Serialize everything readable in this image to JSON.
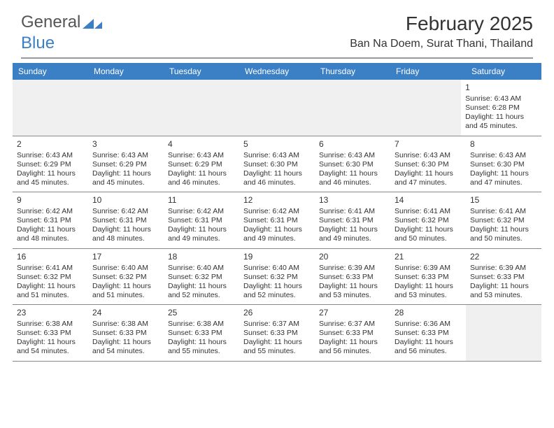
{
  "brand": {
    "word1": "General",
    "word2": "Blue"
  },
  "title": "February 2025",
  "location": "Ban Na Doem, Surat Thani, Thailand",
  "colors": {
    "header_bar": "#3b7fc4",
    "text": "#333333",
    "divider": "#888888",
    "blank_bg": "#f0f0f0",
    "logo_gray": "#555555"
  },
  "day_names": [
    "Sunday",
    "Monday",
    "Tuesday",
    "Wednesday",
    "Thursday",
    "Friday",
    "Saturday"
  ],
  "weeks": [
    [
      null,
      null,
      null,
      null,
      null,
      null,
      {
        "n": "1",
        "sr": "Sunrise: 6:43 AM",
        "ss": "Sunset: 6:28 PM",
        "dl1": "Daylight: 11 hours",
        "dl2": "and 45 minutes."
      }
    ],
    [
      {
        "n": "2",
        "sr": "Sunrise: 6:43 AM",
        "ss": "Sunset: 6:29 PM",
        "dl1": "Daylight: 11 hours",
        "dl2": "and 45 minutes."
      },
      {
        "n": "3",
        "sr": "Sunrise: 6:43 AM",
        "ss": "Sunset: 6:29 PM",
        "dl1": "Daylight: 11 hours",
        "dl2": "and 45 minutes."
      },
      {
        "n": "4",
        "sr": "Sunrise: 6:43 AM",
        "ss": "Sunset: 6:29 PM",
        "dl1": "Daylight: 11 hours",
        "dl2": "and 46 minutes."
      },
      {
        "n": "5",
        "sr": "Sunrise: 6:43 AM",
        "ss": "Sunset: 6:30 PM",
        "dl1": "Daylight: 11 hours",
        "dl2": "and 46 minutes."
      },
      {
        "n": "6",
        "sr": "Sunrise: 6:43 AM",
        "ss": "Sunset: 6:30 PM",
        "dl1": "Daylight: 11 hours",
        "dl2": "and 46 minutes."
      },
      {
        "n": "7",
        "sr": "Sunrise: 6:43 AM",
        "ss": "Sunset: 6:30 PM",
        "dl1": "Daylight: 11 hours",
        "dl2": "and 47 minutes."
      },
      {
        "n": "8",
        "sr": "Sunrise: 6:43 AM",
        "ss": "Sunset: 6:30 PM",
        "dl1": "Daylight: 11 hours",
        "dl2": "and 47 minutes."
      }
    ],
    [
      {
        "n": "9",
        "sr": "Sunrise: 6:42 AM",
        "ss": "Sunset: 6:31 PM",
        "dl1": "Daylight: 11 hours",
        "dl2": "and 48 minutes."
      },
      {
        "n": "10",
        "sr": "Sunrise: 6:42 AM",
        "ss": "Sunset: 6:31 PM",
        "dl1": "Daylight: 11 hours",
        "dl2": "and 48 minutes."
      },
      {
        "n": "11",
        "sr": "Sunrise: 6:42 AM",
        "ss": "Sunset: 6:31 PM",
        "dl1": "Daylight: 11 hours",
        "dl2": "and 49 minutes."
      },
      {
        "n": "12",
        "sr": "Sunrise: 6:42 AM",
        "ss": "Sunset: 6:31 PM",
        "dl1": "Daylight: 11 hours",
        "dl2": "and 49 minutes."
      },
      {
        "n": "13",
        "sr": "Sunrise: 6:41 AM",
        "ss": "Sunset: 6:31 PM",
        "dl1": "Daylight: 11 hours",
        "dl2": "and 49 minutes."
      },
      {
        "n": "14",
        "sr": "Sunrise: 6:41 AM",
        "ss": "Sunset: 6:32 PM",
        "dl1": "Daylight: 11 hours",
        "dl2": "and 50 minutes."
      },
      {
        "n": "15",
        "sr": "Sunrise: 6:41 AM",
        "ss": "Sunset: 6:32 PM",
        "dl1": "Daylight: 11 hours",
        "dl2": "and 50 minutes."
      }
    ],
    [
      {
        "n": "16",
        "sr": "Sunrise: 6:41 AM",
        "ss": "Sunset: 6:32 PM",
        "dl1": "Daylight: 11 hours",
        "dl2": "and 51 minutes."
      },
      {
        "n": "17",
        "sr": "Sunrise: 6:40 AM",
        "ss": "Sunset: 6:32 PM",
        "dl1": "Daylight: 11 hours",
        "dl2": "and 51 minutes."
      },
      {
        "n": "18",
        "sr": "Sunrise: 6:40 AM",
        "ss": "Sunset: 6:32 PM",
        "dl1": "Daylight: 11 hours",
        "dl2": "and 52 minutes."
      },
      {
        "n": "19",
        "sr": "Sunrise: 6:40 AM",
        "ss": "Sunset: 6:32 PM",
        "dl1": "Daylight: 11 hours",
        "dl2": "and 52 minutes."
      },
      {
        "n": "20",
        "sr": "Sunrise: 6:39 AM",
        "ss": "Sunset: 6:33 PM",
        "dl1": "Daylight: 11 hours",
        "dl2": "and 53 minutes."
      },
      {
        "n": "21",
        "sr": "Sunrise: 6:39 AM",
        "ss": "Sunset: 6:33 PM",
        "dl1": "Daylight: 11 hours",
        "dl2": "and 53 minutes."
      },
      {
        "n": "22",
        "sr": "Sunrise: 6:39 AM",
        "ss": "Sunset: 6:33 PM",
        "dl1": "Daylight: 11 hours",
        "dl2": "and 53 minutes."
      }
    ],
    [
      {
        "n": "23",
        "sr": "Sunrise: 6:38 AM",
        "ss": "Sunset: 6:33 PM",
        "dl1": "Daylight: 11 hours",
        "dl2": "and 54 minutes."
      },
      {
        "n": "24",
        "sr": "Sunrise: 6:38 AM",
        "ss": "Sunset: 6:33 PM",
        "dl1": "Daylight: 11 hours",
        "dl2": "and 54 minutes."
      },
      {
        "n": "25",
        "sr": "Sunrise: 6:38 AM",
        "ss": "Sunset: 6:33 PM",
        "dl1": "Daylight: 11 hours",
        "dl2": "and 55 minutes."
      },
      {
        "n": "26",
        "sr": "Sunrise: 6:37 AM",
        "ss": "Sunset: 6:33 PM",
        "dl1": "Daylight: 11 hours",
        "dl2": "and 55 minutes."
      },
      {
        "n": "27",
        "sr": "Sunrise: 6:37 AM",
        "ss": "Sunset: 6:33 PM",
        "dl1": "Daylight: 11 hours",
        "dl2": "and 56 minutes."
      },
      {
        "n": "28",
        "sr": "Sunrise: 6:36 AM",
        "ss": "Sunset: 6:33 PM",
        "dl1": "Daylight: 11 hours",
        "dl2": "and 56 minutes."
      },
      null
    ]
  ]
}
